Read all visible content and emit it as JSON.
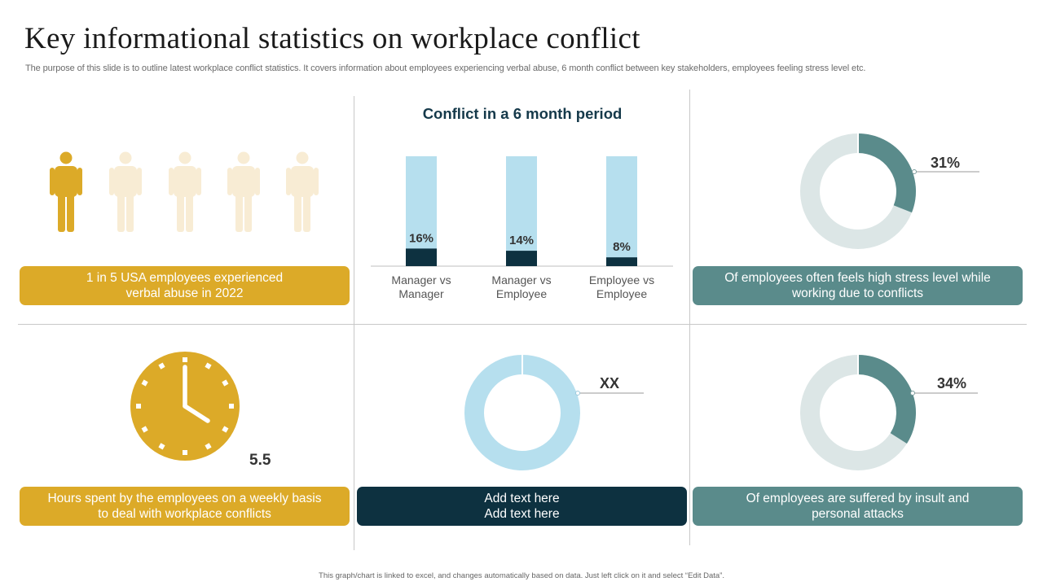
{
  "title": "Key informational statistics on workplace conflict",
  "subtitle": "The purpose of this slide is to outline latest workplace conflict statistics. It covers information about employees experiencing verbal abuse, 6 month conflict between key stakeholders, employees feeling stress level etc.",
  "panels": {
    "verbal_abuse": {
      "highlighted_people": 1,
      "total_people": 5,
      "caption_line1": "1 in 5 USA employees experienced",
      "caption_line2": "verbal abuse in 2022"
    },
    "stress": {
      "percent_label": "31%",
      "caption_line1": "Of employees often feels high stress level while",
      "caption_line2": "working due to conflicts"
    },
    "hours": {
      "value": "5.5",
      "caption_line1": "Hours spent by the employees on a weekly basis",
      "caption_line2": "to deal with workplace conflicts"
    },
    "placeholder": {
      "value": "XX",
      "caption_line1": "Add text here",
      "caption_line2": "Add text here"
    },
    "insult": {
      "percent_label": "34%",
      "caption_line1": "Of employees are suffered by insult and",
      "caption_line2": "personal attacks"
    }
  },
  "footer": "This graph/chart is linked to excel, and changes automatically based on data. Just left click on it and select “Edit Data”.",
  "colors": {
    "gold": "#dcaa28",
    "gold_light": "#f8ecd4",
    "teal": "#5a8b8b",
    "donut_track": "#dce6e6",
    "navy": "#0d3140",
    "light_blue": "#b6dfee"
  },
  "icons": [
    "person-icon",
    "clock-icon"
  ],
  "chart_data": [
    {
      "type": "bar",
      "title": "Conflict in a 6 month period",
      "categories": [
        [
          "Manager vs",
          "Manager"
        ],
        [
          "Manager vs",
          "Employee"
        ],
        [
          "Employee vs",
          "Employee"
        ]
      ],
      "values": [
        16,
        14,
        8
      ],
      "value_labels": [
        "16%",
        "14%",
        "8%"
      ],
      "ylim": [
        0,
        100
      ],
      "stacked_remainder": true
    },
    {
      "type": "pie",
      "style": "donut",
      "values": [
        31,
        69
      ],
      "label": "31%"
    },
    {
      "type": "pie",
      "style": "donut",
      "values": [
        0,
        100
      ],
      "label": "XX"
    },
    {
      "type": "pie",
      "style": "donut",
      "values": [
        34,
        66
      ],
      "label": "34%"
    }
  ]
}
